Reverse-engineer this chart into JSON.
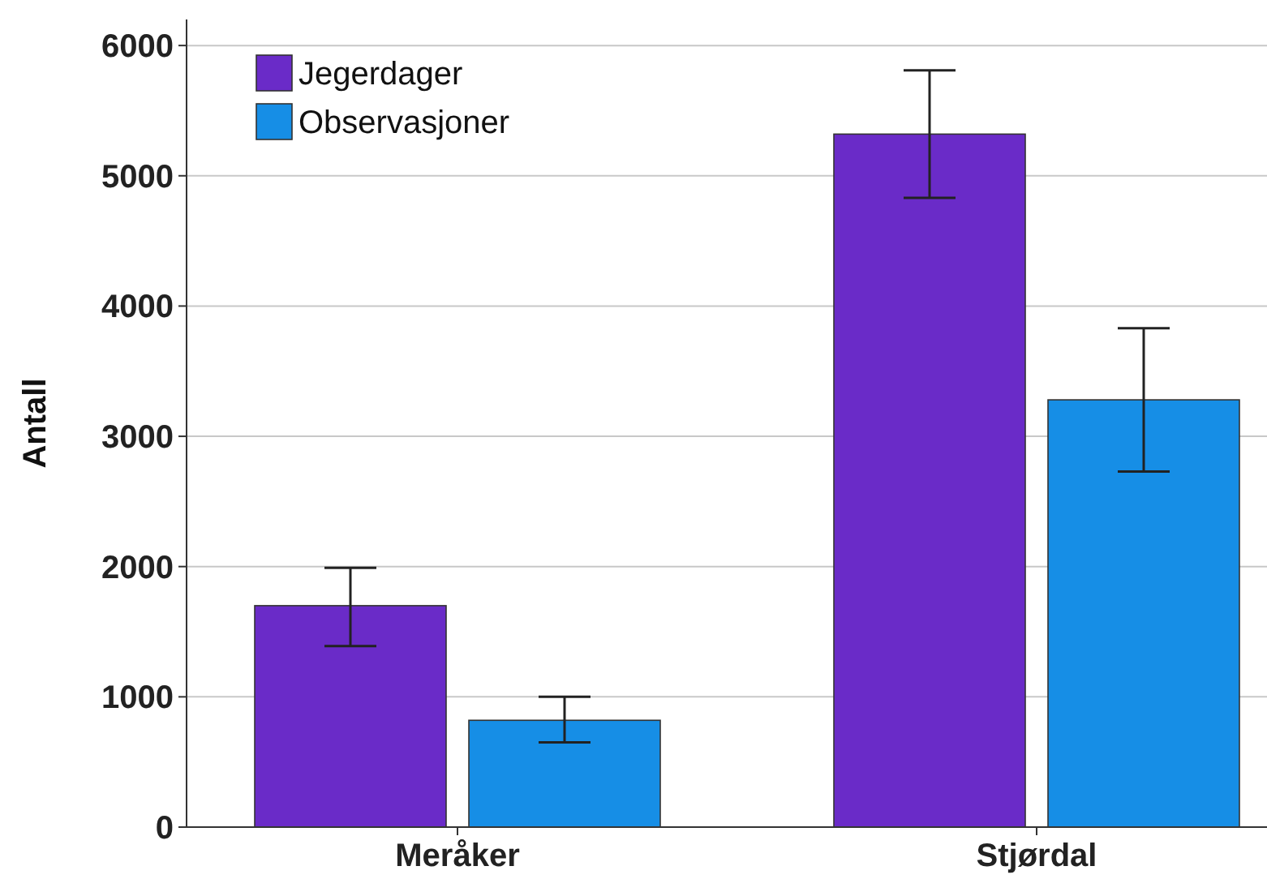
{
  "chart_data": {
    "type": "bar",
    "ylabel": "Antall",
    "categories": [
      "Meråker",
      "Stjørdal"
    ],
    "series": [
      {
        "name": "Jegerdager",
        "color": "#6a2bc8",
        "values": [
          1700,
          5320
        ],
        "errors": [
          [
            1390,
            1990
          ],
          [
            4830,
            5810
          ]
        ]
      },
      {
        "name": "Observasjoner",
        "color": "#168ee6",
        "values": [
          820,
          3280
        ],
        "errors": [
          [
            650,
            1000
          ],
          [
            2730,
            3830
          ]
        ]
      }
    ],
    "ylim": [
      0,
      6200
    ],
    "yticks": [
      0,
      1000,
      2000,
      3000,
      4000,
      5000,
      6000
    ],
    "grid": "y",
    "legend": "top left"
  }
}
